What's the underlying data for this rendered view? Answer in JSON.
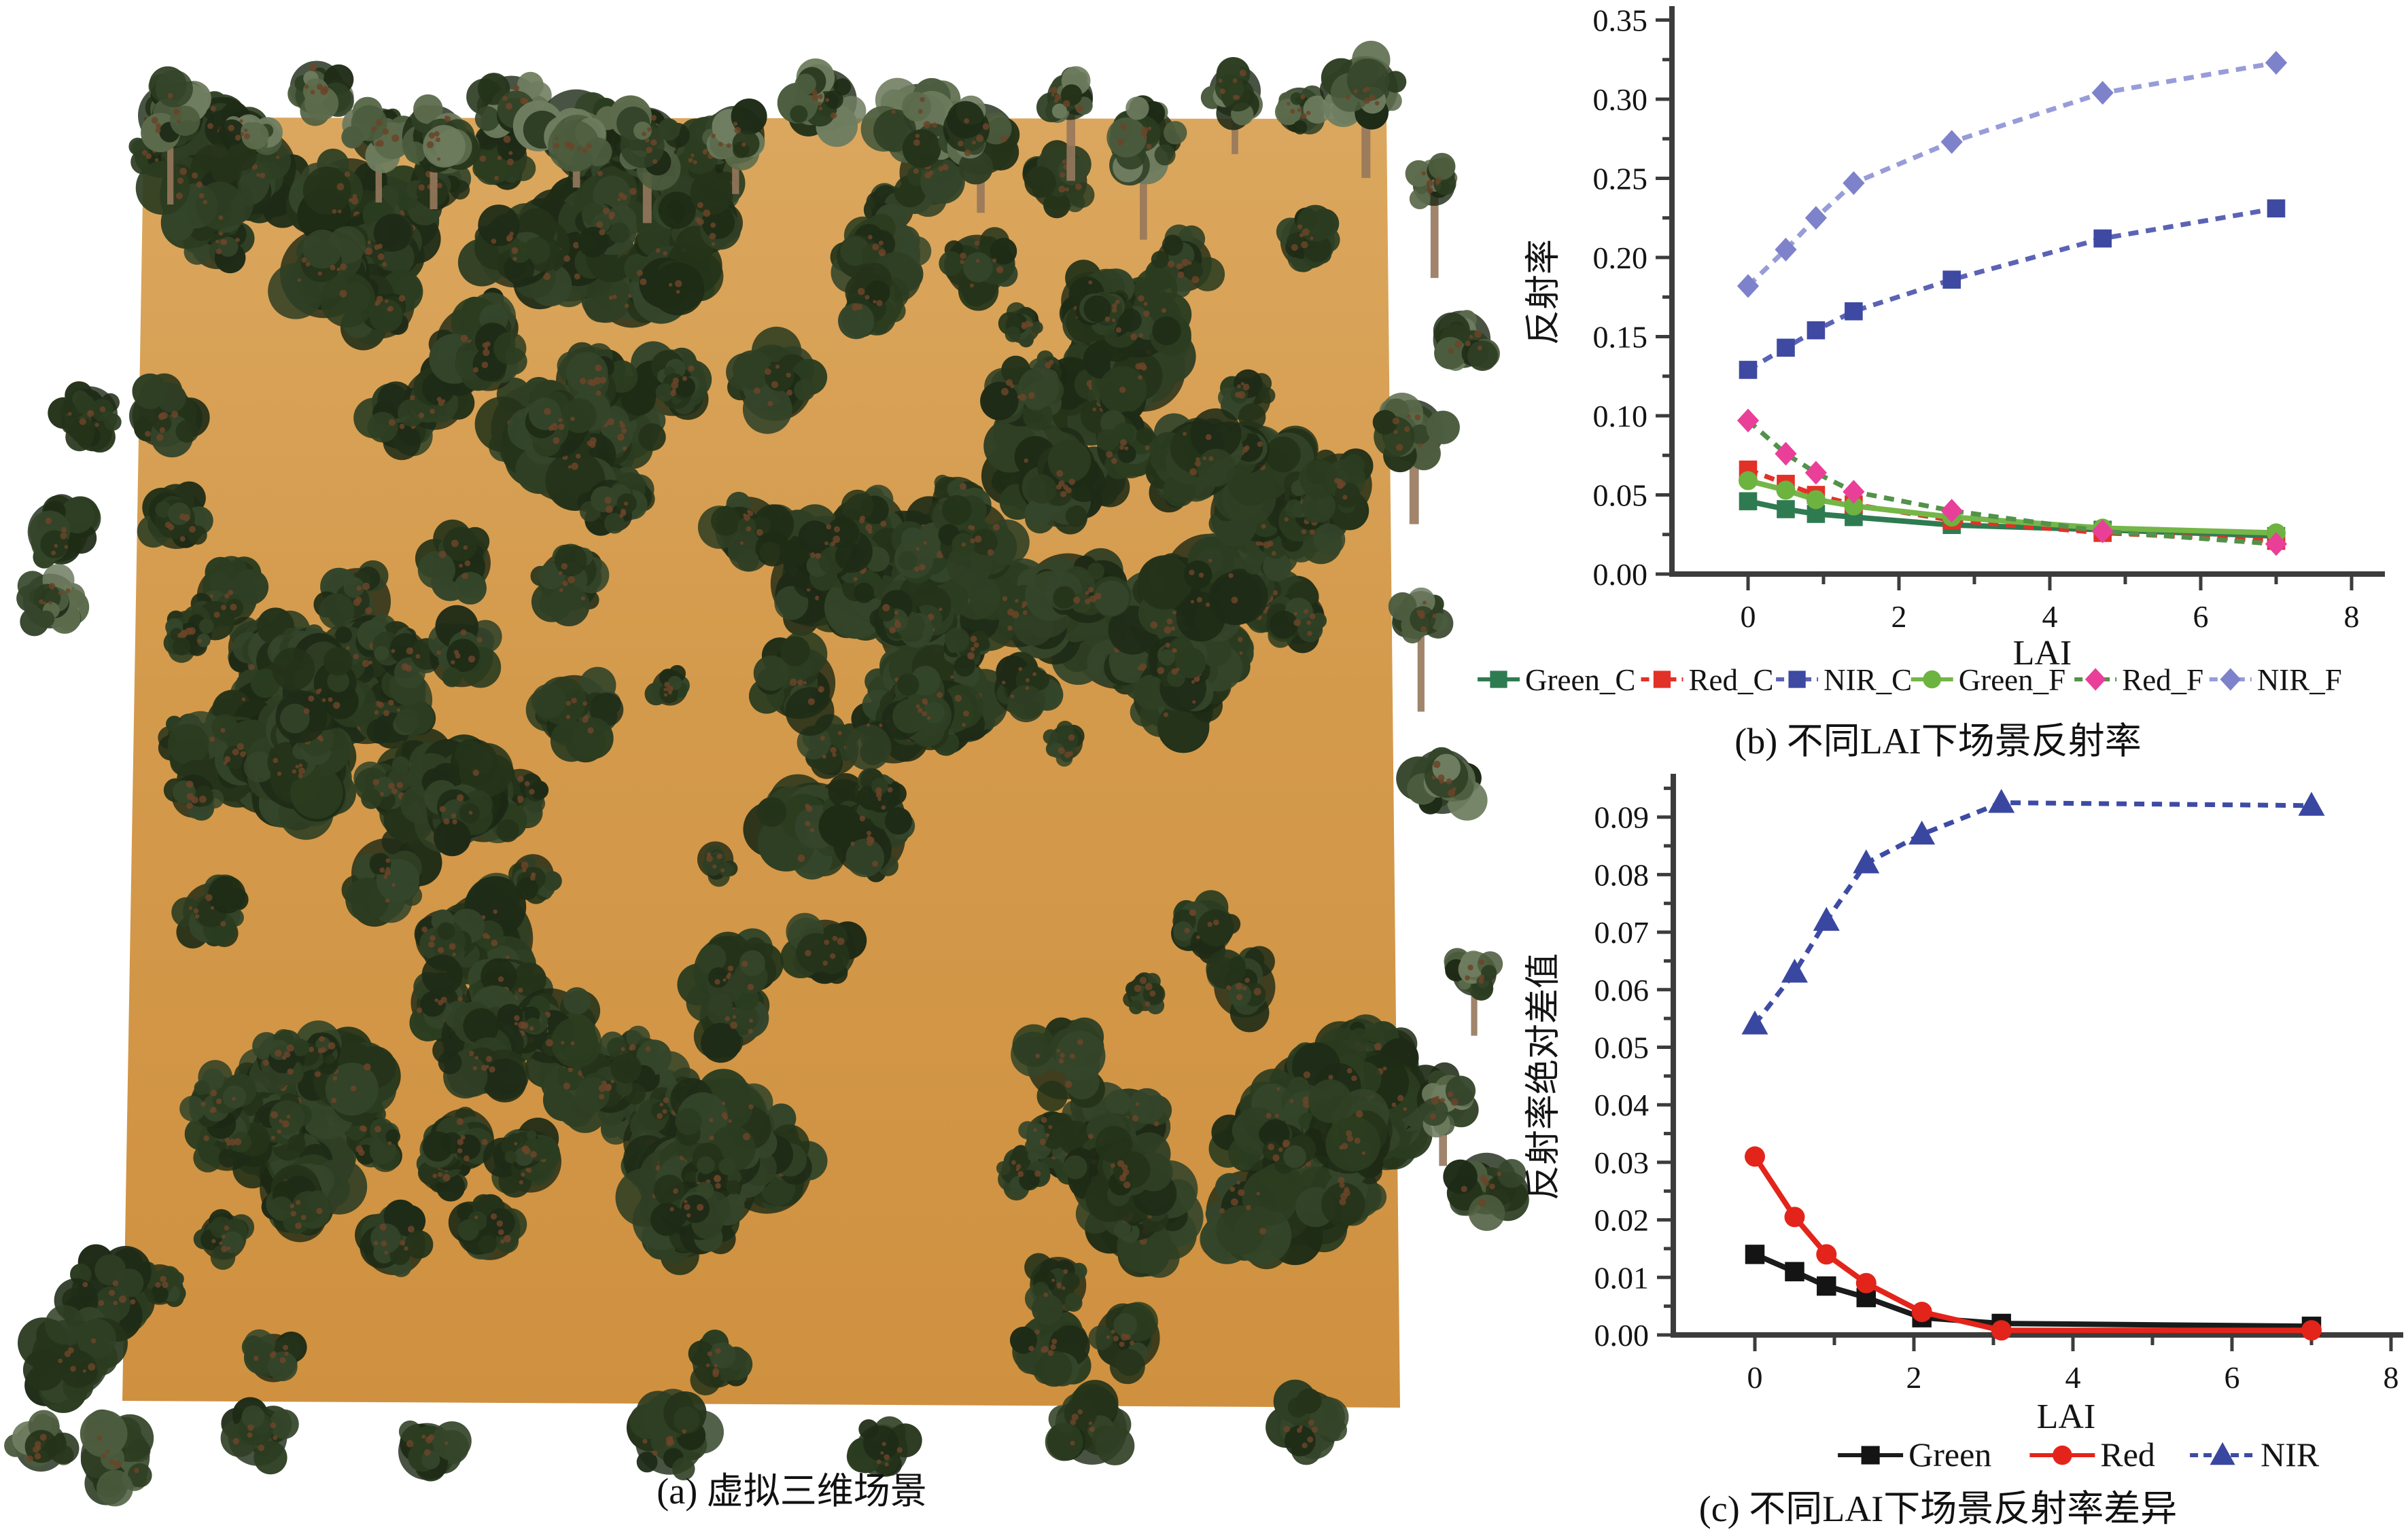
{
  "figure": {
    "captions": {
      "a": "(a) 虚拟三维场景",
      "b": "(b) 不同LAI下场景反射率",
      "c": "(c) 不同LAI下场景反射率差异"
    }
  },
  "scene": {
    "description": "virtual 3D forest scene, top view, scattered tree crowns on bare orange soil plane",
    "ground_color": "#d49a4c",
    "ground_color_light": "#dba75e",
    "ground_color_dark": "#cf9140",
    "tree_palette": [
      "#243319",
      "#2b3c20",
      "#1e2b16",
      "#34452a",
      "#2f3f24"
    ],
    "tree_light_palette": [
      "#4c5c3e",
      "#5c6b4c",
      "#6f7d60"
    ],
    "tree_shadow_color": "#1c2814",
    "trunk_color": "#96785c",
    "speck_color": "#6b4429"
  },
  "chart_data": [
    {
      "id": "reflectance_vs_lai",
      "type": "line",
      "title": "(b) 不同LAI下场景反射率",
      "xlabel": "LAI",
      "ylabel": "反射率",
      "xlim": [
        -1,
        8.6
      ],
      "ylim": [
        0,
        0.357
      ],
      "xticks": [
        0,
        2,
        4,
        6,
        8
      ],
      "yticks": [
        0.0,
        0.05,
        0.1,
        0.15,
        0.2,
        0.25,
        0.3,
        0.35
      ],
      "grid": false,
      "legend_position": "bottom",
      "x": [
        0,
        0.5,
        0.9,
        1.4,
        2.7,
        4.7,
        7
      ],
      "series": [
        {
          "name": "Green_C",
          "marker": "square",
          "marker_color": "#2f7b51",
          "line_color": "#2f7b51",
          "line_style": "solid",
          "values": [
            0.046,
            0.041,
            0.038,
            0.036,
            0.031,
            0.028,
            0.024
          ]
        },
        {
          "name": "Red_C",
          "marker": "square",
          "marker_color": "#e23127",
          "line_color": "#e23127",
          "line_style": "dashed",
          "values": [
            0.066,
            0.057,
            0.05,
            0.044,
            0.034,
            0.026,
            0.021
          ]
        },
        {
          "name": "NIR_C",
          "marker": "square",
          "marker_color": "#3e49a2",
          "line_color": "#5a63b4",
          "line_style": "dashed",
          "values": [
            0.129,
            0.143,
            0.154,
            0.166,
            0.186,
            0.212,
            0.231
          ]
        },
        {
          "name": "Green_F",
          "marker": "circle",
          "marker_color": "#6db340",
          "line_color": "#74b648",
          "line_style": "solid",
          "values": [
            0.059,
            0.053,
            0.047,
            0.043,
            0.036,
            0.029,
            0.026
          ]
        },
        {
          "name": "Red_F",
          "marker": "diamond",
          "marker_color": "#ea3f99",
          "line_color": "#52924a",
          "line_style": "dashed",
          "values": [
            0.097,
            0.076,
            0.064,
            0.052,
            0.04,
            0.027,
            0.019
          ]
        },
        {
          "name": "NIR_F",
          "marker": "diamond",
          "marker_color": "#7e82cb",
          "line_color": "#989cd8",
          "line_style": "dashed",
          "values": [
            0.182,
            0.205,
            0.225,
            0.247,
            0.273,
            0.304,
            0.323
          ]
        }
      ]
    },
    {
      "id": "reflectance_abs_difference_vs_lai",
      "type": "line",
      "title": "(c) 不同LAI下场景反射率差异",
      "xlabel": "LAI",
      "ylabel": "反射率绝对差值",
      "xlim": [
        -1,
        8.6
      ],
      "ylim": [
        0,
        0.097
      ],
      "xticks": [
        0,
        2,
        4,
        6,
        8
      ],
      "yticks": [
        0.0,
        0.01,
        0.02,
        0.03,
        0.04,
        0.05,
        0.06,
        0.07,
        0.08,
        0.09
      ],
      "grid": false,
      "legend_position": "bottom",
      "x": [
        0,
        0.5,
        0.9,
        1.4,
        2.1,
        3.1,
        7
      ],
      "series": [
        {
          "name": "Green",
          "marker": "square",
          "marker_color": "#141414",
          "line_color": "#1b1b1b",
          "line_style": "solid",
          "values": [
            0.014,
            0.011,
            0.0085,
            0.0065,
            0.003,
            0.002,
            0.0015
          ]
        },
        {
          "name": "Red",
          "marker": "circle",
          "marker_color": "#e3241b",
          "line_color": "#e3241b",
          "line_style": "solid",
          "values": [
            0.031,
            0.0205,
            0.014,
            0.009,
            0.004,
            0.0008,
            0.0008
          ]
        },
        {
          "name": "NIR",
          "marker": "triangle",
          "marker_color": "#3a47a0",
          "line_color": "#3d4ba4",
          "line_style": "dashed",
          "values": [
            0.054,
            0.063,
            0.072,
            0.082,
            0.087,
            0.0925,
            0.092
          ]
        }
      ]
    }
  ]
}
